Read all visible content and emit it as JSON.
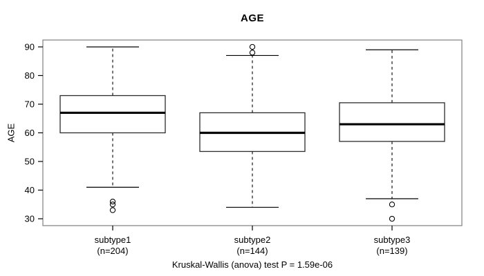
{
  "title": "AGE",
  "ylabel": "AGE",
  "annotation": "Kruskal-Wallis (anova) test P = 1.59e-06",
  "colors": {
    "background": "#ffffff",
    "frame": "#888888",
    "stroke": "#000000",
    "box_fill": "#ffffff",
    "text": "#000000"
  },
  "chart_data": {
    "type": "boxplot",
    "title": "AGE",
    "ylabel": "AGE",
    "xlabel": "",
    "grid": false,
    "legend": "none",
    "ylim": [
      27.6,
      92.4
    ],
    "yticks": [
      30,
      40,
      50,
      60,
      70,
      80,
      90
    ],
    "annotation": "Kruskal-Wallis (anova) test P = 1.59e-06",
    "groups": [
      {
        "label": "subtype1",
        "sublabel": "(n=204)",
        "n": 204,
        "whisker_low": 41,
        "q1": 60,
        "median": 67,
        "q3": 73,
        "whisker_high": 90,
        "outliers": [
          36,
          35,
          33
        ]
      },
      {
        "label": "subtype2",
        "sublabel": "(n=144)",
        "n": 144,
        "whisker_low": 34,
        "q1": 53.5,
        "median": 60,
        "q3": 67,
        "whisker_high": 87,
        "outliers": [
          88,
          90
        ]
      },
      {
        "label": "subtype3",
        "sublabel": "(n=139)",
        "n": 139,
        "whisker_low": 37,
        "q1": 57,
        "median": 63,
        "q3": 70.5,
        "whisker_high": 89,
        "outliers": [
          35,
          30
        ]
      }
    ]
  }
}
